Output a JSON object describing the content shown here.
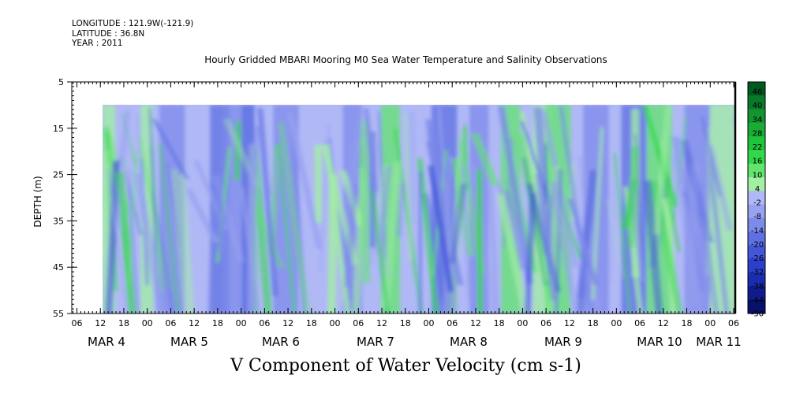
{
  "header": {
    "lines": [
      "LONGITUDE : 121.9W(-121.9)",
      "LATITUDE : 36.8N",
      "YEAR : 2011"
    ],
    "title": "Hourly Gridded MBARI Mooring M0 Sea Water Temperature and Salinity Observations"
  },
  "chart_data": {
    "type": "heatmap",
    "title": "V Component of Water Velocity (cm s-1)",
    "ylabel": "DEPTH (m)",
    "ylim": [
      55,
      5
    ],
    "yticks": [
      "5",
      "15",
      "25",
      "35",
      "45",
      "55"
    ],
    "data_depth_range": [
      10,
      55
    ],
    "x_hour_ticks": [
      "06",
      "12",
      "18",
      "00",
      "06",
      "12",
      "18",
      "00",
      "06",
      "12",
      "18",
      "00",
      "06",
      "12",
      "18",
      "00",
      "06",
      "12",
      "18",
      "00",
      "06",
      "12",
      "18",
      "00",
      "06",
      "12",
      "18",
      "00",
      "06"
    ],
    "day_labels": [
      "MAR  4",
      "MAR  5",
      "MAR  6",
      "MAR  7",
      "MAR  8",
      "MAR  9",
      "MAR 10",
      "MAR 11"
    ],
    "colorbar": {
      "labels": [
        "46",
        "40",
        "34",
        "28",
        "22",
        "16",
        "10",
        "4",
        "-2",
        "-8",
        "-14",
        "-20",
        "-26",
        "-32",
        "-38",
        "-44",
        "-50"
      ],
      "colors": [
        "#005a1e",
        "#0a7a2a",
        "#12952f",
        "#18ad34",
        "#1ec43a",
        "#32d84b",
        "#62e46f",
        "#a2f0a2",
        "#b0b8f6",
        "#98a2f0",
        "#7c8aea",
        "#5e70e2",
        "#4256d8",
        "#2a40c8",
        "#1a2caf",
        "#101c8c",
        "#08106a"
      ]
    },
    "grid": false,
    "legend": "right"
  }
}
